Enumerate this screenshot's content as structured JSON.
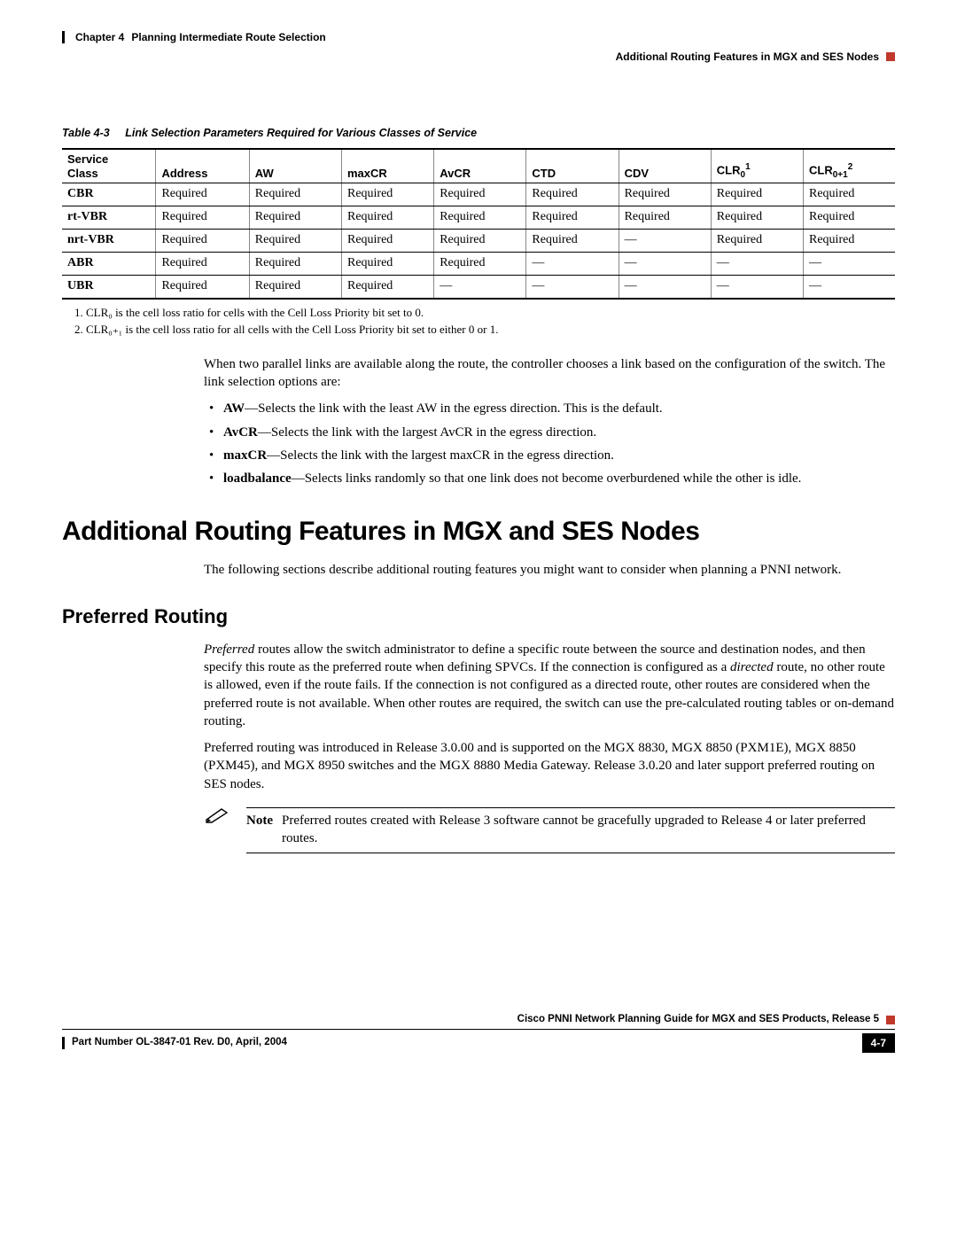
{
  "header": {
    "chapter_label": "Chapter 4",
    "chapter_title": "Planning Intermediate Route Selection",
    "section_title": "Additional Routing Features in MGX and SES Nodes"
  },
  "table": {
    "caption_num": "Table 4-3",
    "caption_text": "Link Selection Parameters Required for Various Classes of Service",
    "columns": [
      "Service Class",
      "Address",
      "AW",
      "maxCR",
      "AvCR",
      "CTD",
      "CDV",
      "CLR0",
      "CLR0+1"
    ],
    "clr0_sup": "1",
    "clr01_sup": "2",
    "rows": [
      {
        "svc": "CBR",
        "cells": [
          "Required",
          "Required",
          "Required",
          "Required",
          "Required",
          "Required",
          "Required",
          "Required"
        ]
      },
      {
        "svc": "rt-VBR",
        "cells": [
          "Required",
          "Required",
          "Required",
          "Required",
          "Required",
          "Required",
          "Required",
          "Required"
        ]
      },
      {
        "svc": "nrt-VBR",
        "cells": [
          "Required",
          "Required",
          "Required",
          "Required",
          "Required",
          "—",
          "Required",
          "Required"
        ]
      },
      {
        "svc": "ABR",
        "cells": [
          "Required",
          "Required",
          "Required",
          "Required",
          "—",
          "—",
          "—",
          "—"
        ]
      },
      {
        "svc": "UBR",
        "cells": [
          "Required",
          "Required",
          "Required",
          "—",
          "—",
          "—",
          "—",
          "—"
        ]
      }
    ],
    "footnotes": [
      "1.  CLR₀ is the cell loss ratio for cells with the Cell Loss Priority bit set to 0.",
      "2.  CLR₀₊₁ is the cell loss ratio for all cells with the Cell Loss Priority bit set to either 0 or 1."
    ]
  },
  "intro_para": "When two parallel links are available along the route, the controller chooses a link based on the configuration of the switch. The link selection options are:",
  "bullets": [
    {
      "term": "AW",
      "text": "—Selects the link with the least AW in the egress direction. This is the default."
    },
    {
      "term": "AvCR",
      "text": "—Selects the link with the largest AvCR in the egress direction."
    },
    {
      "term": "maxCR",
      "text": "—Selects the link with the largest maxCR in the egress direction."
    },
    {
      "term": "loadbalance",
      "text": "—Selects links randomly so that one link does not become overburdened while the other is idle."
    }
  ],
  "h1": "Additional Routing Features in MGX and SES Nodes",
  "h1_para": "The following sections describe additional routing features you might want to consider when planning a PNNI network.",
  "h2": "Preferred Routing",
  "preferred_para1_a": "Preferred",
  "preferred_para1_b": " routes allow the switch administrator to define a specific route between the source and destination nodes, and then specify this route as the preferred route when defining SPVCs. If the connection is configured as a ",
  "preferred_para1_c": "directed",
  "preferred_para1_d": " route, no other route is allowed, even if the route fails. If the connection is not configured as a directed route, other routes are considered when the preferred route is not available. When other routes are required, the switch can use the pre-calculated routing tables or on-demand routing.",
  "preferred_para2": "Preferred routing was introduced in Release 3.0.00 and is supported on the MGX 8830, MGX 8850 (PXM1E), MGX 8850 (PXM45), and MGX 8950 switches and the MGX 8880 Media Gateway. Release 3.0.20 and later support preferred routing on SES nodes.",
  "note_label": "Note",
  "note_text": "Preferred routes created with Release 3 software cannot be gracefully upgraded to Release 4 or later preferred routes.",
  "footer": {
    "book": "Cisco PNNI Network Planning Guide  for MGX and SES Products, Release 5",
    "partnum": "Part Number OL-3847-01 Rev. D0, April, 2004",
    "page": "4-7"
  }
}
